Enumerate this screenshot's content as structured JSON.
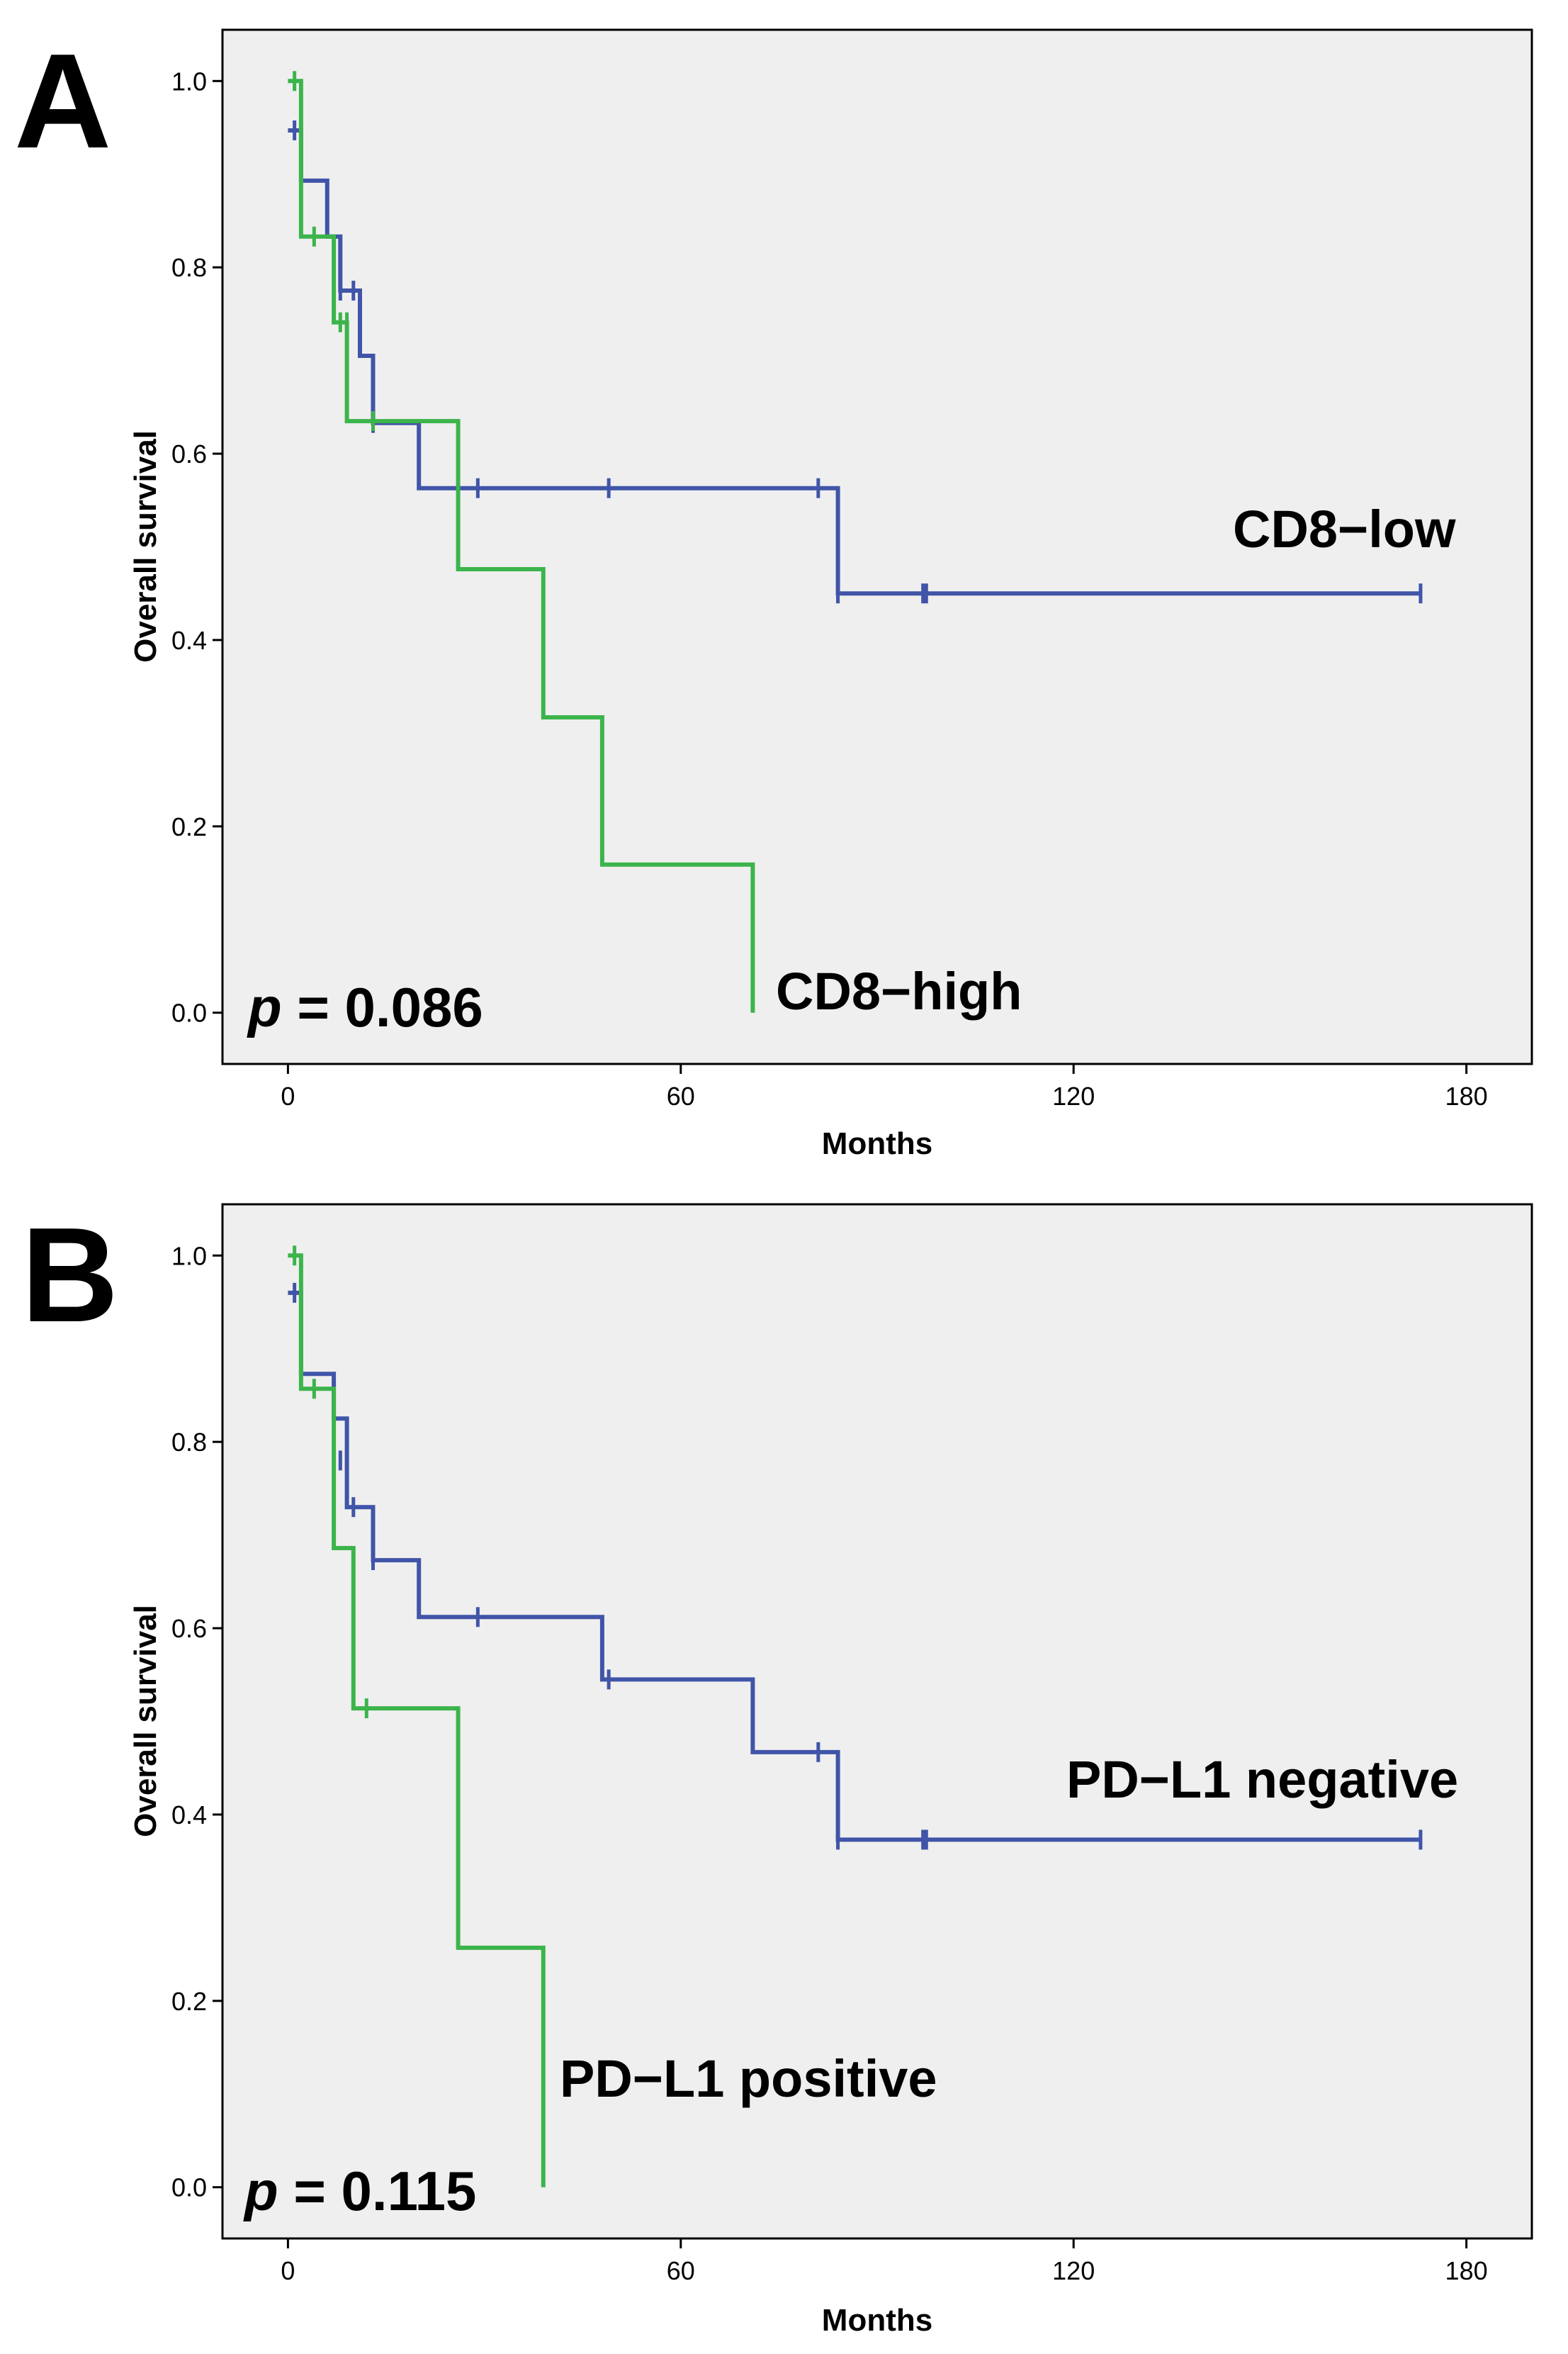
{
  "colors": {
    "low_or_negative": "#4055a8",
    "high_or_positive": "#3cb44b",
    "plot_bg": "#efefef"
  },
  "chart_data": [
    {
      "panel": "A",
      "type": "line",
      "step": true,
      "xlabel": "Months",
      "ylabel": "Overall survival",
      "xlim": [
        -10,
        190
      ],
      "ylim": [
        -0.055,
        1.055
      ],
      "xticks": [
        0,
        60,
        120,
        180
      ],
      "yticks": [
        0.0,
        0.2,
        0.4,
        0.6,
        0.8,
        1.0
      ],
      "xtick_labels": [
        "0",
        "60",
        "120",
        "180"
      ],
      "ytick_labels": [
        "0.0",
        "0.2",
        "0.4",
        "0.6",
        "0.8",
        "1.0"
      ],
      "p_prefix": "p",
      "p_text": " = 0.086",
      "series": [
        {
          "name": "CD8-low",
          "label": "CD8−low",
          "color": "#4055a8",
          "x": [
            0,
            1,
            1,
            2,
            2,
            6,
            6,
            8,
            8,
            11,
            11,
            13,
            13,
            20,
            20,
            84,
            84,
            173
          ],
          "y": [
            0.947,
            0.947,
            0.947,
            0.947,
            0.893,
            0.893,
            0.833,
            0.833,
            0.775,
            0.775,
            0.705,
            0.705,
            0.633,
            0.633,
            0.563,
            0.563,
            0.45,
            0.45
          ],
          "censor_x": [
            1,
            8,
            10,
            13,
            29,
            49,
            81,
            84,
            97,
            97.5,
            173
          ],
          "censor_y": [
            0.947,
            0.775,
            0.775,
            0.633,
            0.563,
            0.563,
            0.563,
            0.45,
            0.45,
            0.45,
            0.45
          ]
        },
        {
          "name": "CD8-high",
          "label": "CD8−high",
          "color": "#3cb44b",
          "x": [
            0,
            2,
            2,
            7,
            7,
            9,
            9,
            26,
            26,
            39,
            39,
            48,
            48,
            71,
            71
          ],
          "y": [
            1.0,
            1.0,
            0.833,
            0.833,
            0.741,
            0.741,
            0.635,
            0.635,
            0.476,
            0.476,
            0.317,
            0.317,
            0.159,
            0.159,
            0.0
          ],
          "censor_x": [
            1,
            4,
            8,
            9,
            13
          ],
          "censor_y": [
            1.0,
            0.833,
            0.741,
            0.741,
            0.635
          ]
        }
      ]
    },
    {
      "panel": "B",
      "type": "line",
      "step": true,
      "xlabel": "Months",
      "ylabel": "Overall survival",
      "xlim": [
        -10,
        190
      ],
      "ylim": [
        -0.055,
        1.055
      ],
      "xticks": [
        0,
        60,
        120,
        180
      ],
      "yticks": [
        0.0,
        0.2,
        0.4,
        0.6,
        0.8,
        1.0
      ],
      "xtick_labels": [
        "0",
        "60",
        "120",
        "180"
      ],
      "ytick_labels": [
        "0.0",
        "0.2",
        "0.4",
        "0.6",
        "0.8",
        "1.0"
      ],
      "p_prefix": "p",
      "p_text": " = 0.115",
      "series": [
        {
          "name": "PD-L1 negative",
          "label": "PD−L1 negative",
          "color": "#4055a8",
          "x": [
            0,
            1,
            1,
            2,
            2,
            7,
            7,
            9,
            9,
            13,
            13,
            20,
            20,
            48,
            48,
            71,
            71,
            84,
            84,
            173
          ],
          "y": [
            0.96,
            0.96,
            0.96,
            0.96,
            0.873,
            0.873,
            0.825,
            0.825,
            0.73,
            0.73,
            0.673,
            0.673,
            0.612,
            0.612,
            0.545,
            0.545,
            0.467,
            0.467,
            0.373,
            0.373
          ],
          "censor_x": [
            1,
            2,
            8,
            9,
            10,
            13,
            29,
            49,
            81,
            84,
            97,
            97.5,
            173
          ],
          "censor_y": [
            0.96,
            0.873,
            0.78,
            0.78,
            0.73,
            0.673,
            0.612,
            0.545,
            0.467,
            0.373,
            0.373,
            0.373,
            0.373
          ],
          "censor_note": "tick marks along the curve"
        },
        {
          "name": "PD-L1 positive",
          "label": "PD−L1 positive",
          "color": "#3cb44b",
          "x": [
            0,
            2,
            2,
            7,
            7,
            10,
            10,
            26,
            26,
            39,
            39
          ],
          "y": [
            1.0,
            1.0,
            0.857,
            0.857,
            0.686,
            0.686,
            0.514,
            0.514,
            0.257,
            0.257,
            0.0
          ],
          "censor_x": [
            1,
            4,
            12
          ],
          "censor_y": [
            1.0,
            0.857,
            0.514
          ]
        }
      ]
    }
  ]
}
